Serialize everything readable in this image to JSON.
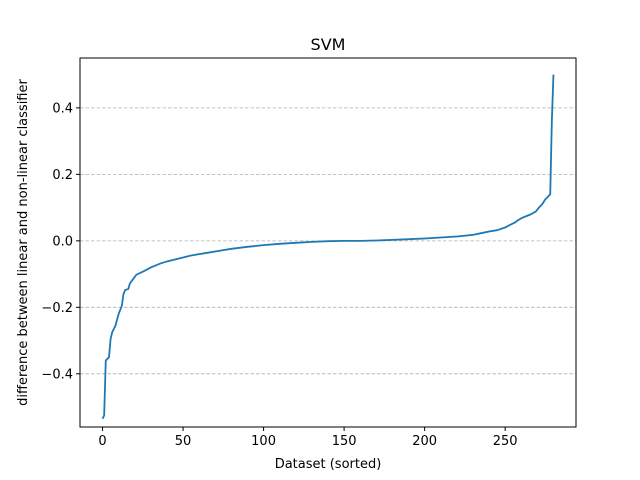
{
  "chart_data": {
    "type": "line",
    "title": "SVM",
    "xlabel": "Dataset (sorted)",
    "ylabel": "difference between linear and non-linear classifier",
    "xlim": [
      -14,
      294
    ],
    "ylim": [
      -0.56,
      0.55
    ],
    "xticks": [
      0,
      50,
      100,
      150,
      200,
      250
    ],
    "yticks": [
      -0.4,
      -0.2,
      0.0,
      0.2,
      0.4
    ],
    "ytick_labels": [
      "−0.4",
      "−0.2",
      "0.0",
      "0.2",
      "0.4"
    ],
    "grid": "y-dashed",
    "series": [
      {
        "color": "#1f77b4",
        "points": [
          [
            0,
            -0.535
          ],
          [
            1,
            -0.525
          ],
          [
            2,
            -0.36
          ],
          [
            4,
            -0.35
          ],
          [
            5,
            -0.295
          ],
          [
            6,
            -0.275
          ],
          [
            8,
            -0.255
          ],
          [
            10,
            -0.22
          ],
          [
            12,
            -0.195
          ],
          [
            13,
            -0.16
          ],
          [
            14,
            -0.148
          ],
          [
            16,
            -0.145
          ],
          [
            17,
            -0.128
          ],
          [
            19,
            -0.115
          ],
          [
            21,
            -0.102
          ],
          [
            24,
            -0.095
          ],
          [
            27,
            -0.088
          ],
          [
            30,
            -0.08
          ],
          [
            33,
            -0.074
          ],
          [
            36,
            -0.068
          ],
          [
            40,
            -0.062
          ],
          [
            45,
            -0.056
          ],
          [
            50,
            -0.05
          ],
          [
            55,
            -0.044
          ],
          [
            60,
            -0.04
          ],
          [
            65,
            -0.036
          ],
          [
            70,
            -0.032
          ],
          [
            75,
            -0.028
          ],
          [
            80,
            -0.024
          ],
          [
            90,
            -0.018
          ],
          [
            100,
            -0.013
          ],
          [
            110,
            -0.009
          ],
          [
            120,
            -0.006
          ],
          [
            130,
            -0.003
          ],
          [
            140,
            -0.001
          ],
          [
            150,
            0.0
          ],
          [
            160,
            0.0
          ],
          [
            170,
            0.001
          ],
          [
            180,
            0.003
          ],
          [
            190,
            0.005
          ],
          [
            200,
            0.007
          ],
          [
            210,
            0.01
          ],
          [
            220,
            0.013
          ],
          [
            230,
            0.018
          ],
          [
            235,
            0.023
          ],
          [
            240,
            0.028
          ],
          [
            245,
            0.032
          ],
          [
            250,
            0.04
          ],
          [
            253,
            0.048
          ],
          [
            256,
            0.055
          ],
          [
            258,
            0.062
          ],
          [
            260,
            0.068
          ],
          [
            263,
            0.074
          ],
          [
            266,
            0.08
          ],
          [
            269,
            0.088
          ],
          [
            271,
            0.1
          ],
          [
            273,
            0.11
          ],
          [
            275,
            0.125
          ],
          [
            277,
            0.135
          ],
          [
            278,
            0.14
          ],
          [
            279,
            0.36
          ],
          [
            280,
            0.5
          ]
        ]
      }
    ]
  }
}
